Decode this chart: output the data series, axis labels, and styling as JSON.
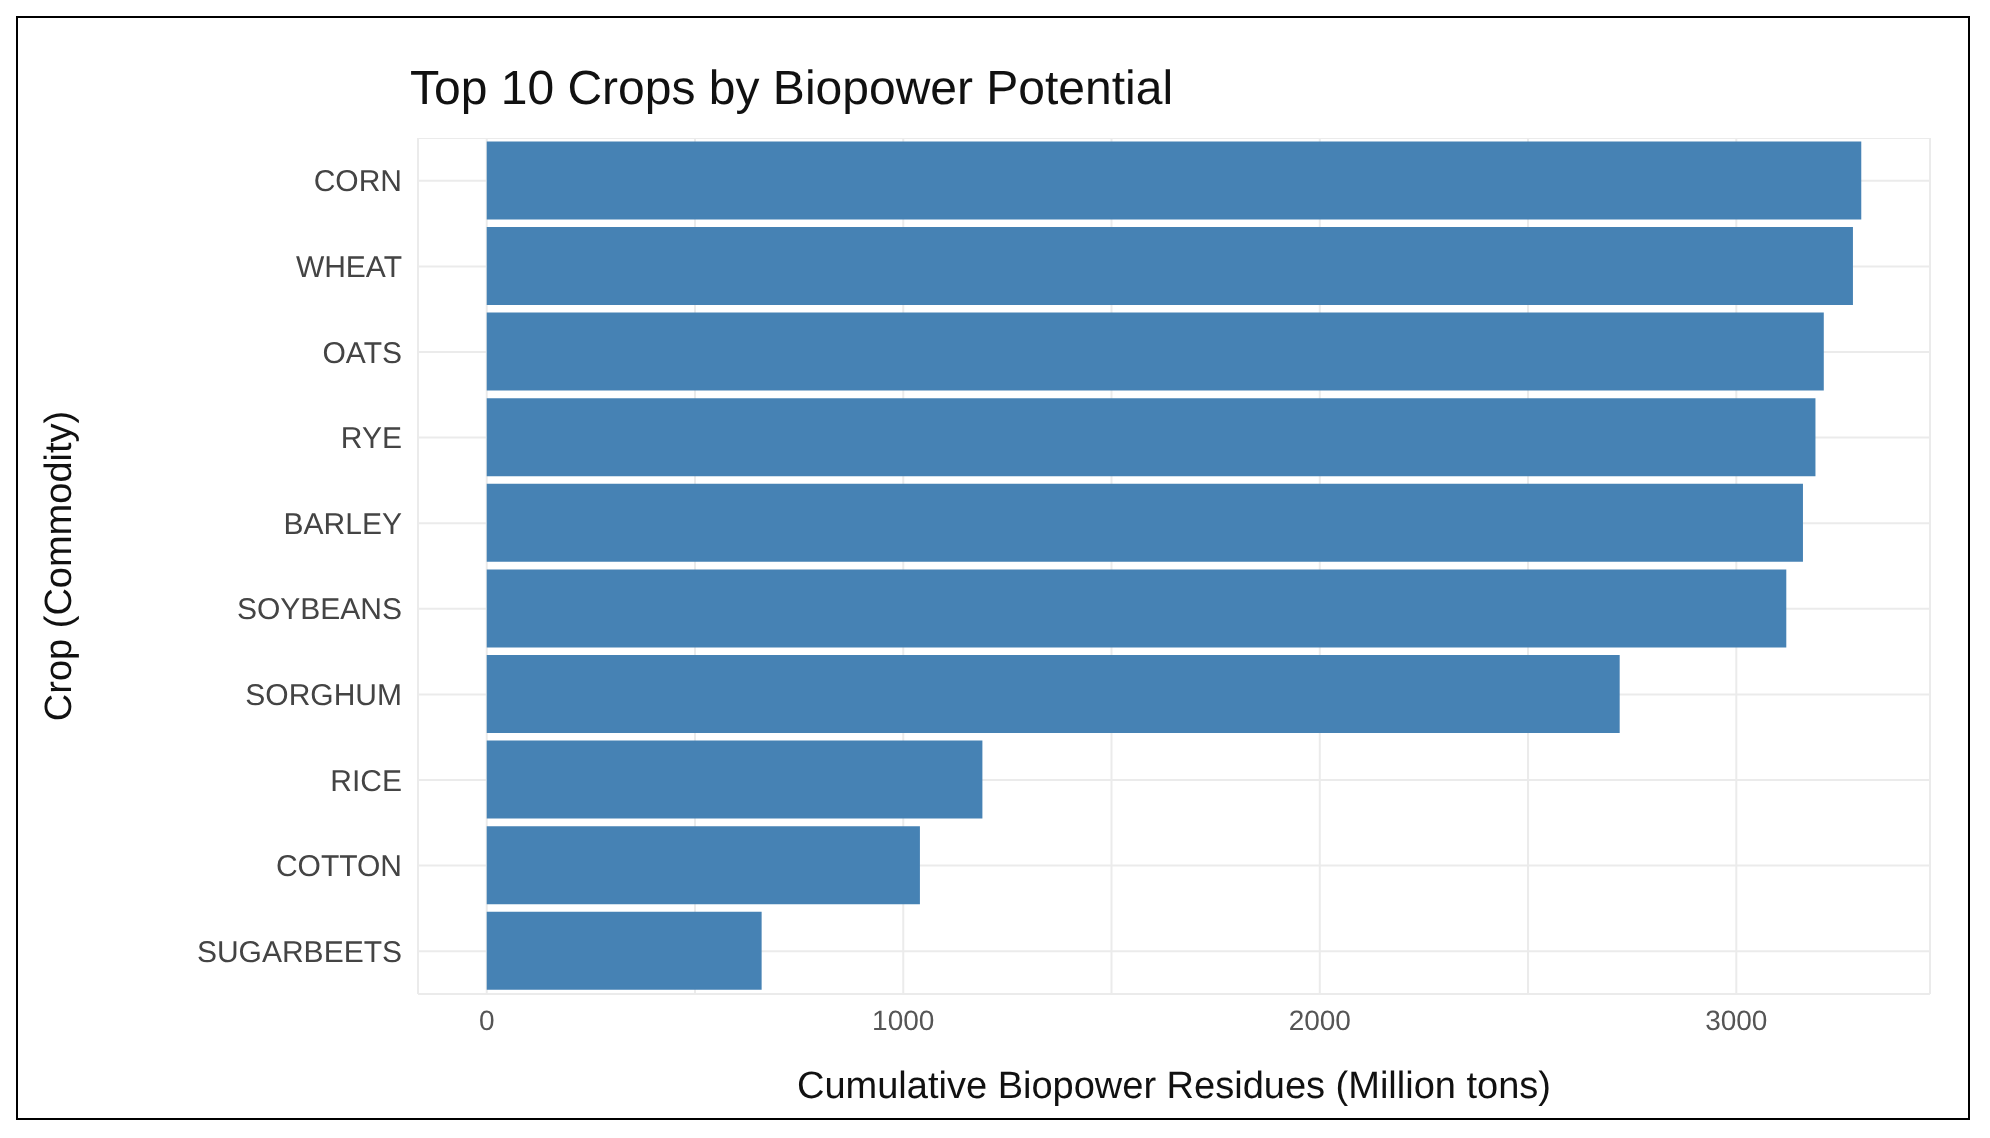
{
  "chart_data": {
    "type": "bar",
    "orientation": "horizontal",
    "title": "Top 10 Crops by Biopower Potential",
    "xlabel": "Cumulative Biopower Residues (Million tons)",
    "ylabel": "Crop (Commodity)",
    "categories": [
      "CORN",
      "WHEAT",
      "OATS",
      "RYE",
      "BARLEY",
      "SOYBEANS",
      "SORGHUM",
      "RICE",
      "COTTON",
      "SUGARBEETS"
    ],
    "values": [
      3300,
      3280,
      3210,
      3190,
      3160,
      3120,
      2720,
      1190,
      1040,
      660
    ],
    "color": "#4682b4",
    "xlim": [
      -165,
      3465
    ],
    "xticks": [
      0,
      {
        "value": 500,
        "label": null
      },
      1000,
      {
        "value": 1500,
        "label": null
      },
      2000,
      {
        "value": 2500,
        "label": null
      },
      3000
    ],
    "grid": true
  }
}
